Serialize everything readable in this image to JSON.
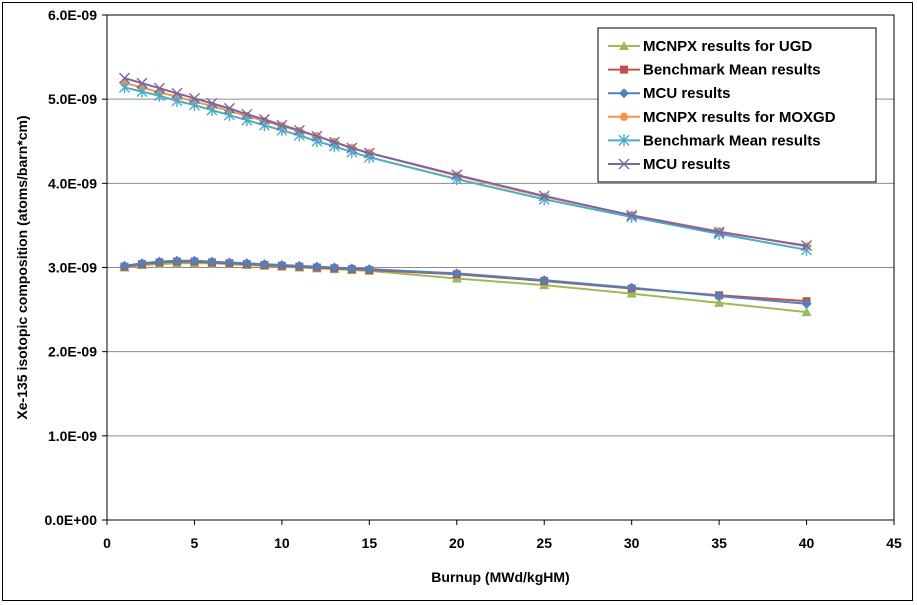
{
  "chart_data": {
    "type": "line",
    "title": "",
    "xlabel": "Burnup (MWd/kgHM)",
    "ylabel": "Xe-135 isotopic composition (atoms/barn*cm)",
    "xlim": [
      0,
      45
    ],
    "ylim": [
      0,
      6e-09
    ],
    "x_ticks": [
      "0",
      "5",
      "10",
      "15",
      "20",
      "25",
      "30",
      "35",
      "40",
      "45"
    ],
    "y_ticks": [
      "0.0E+00",
      "1.0E-09",
      "2.0E-09",
      "3.0E-09",
      "4.0E-09",
      "5.0E-09",
      "6.0E-09"
    ],
    "grid": "horizontal",
    "legend_position": "top-right",
    "x": [
      1,
      2,
      3,
      4,
      5,
      6,
      7,
      8,
      9,
      10,
      11,
      12,
      13,
      14,
      15,
      20,
      25,
      30,
      35,
      40
    ],
    "series": [
      {
        "name": "MCNPX results for UGD",
        "color": "#9BBB59",
        "marker": "triangle",
        "values": [
          3e-09,
          3.03e-09,
          3.04e-09,
          3.05e-09,
          3.05e-09,
          3.05e-09,
          3.04e-09,
          3.03e-09,
          3.02e-09,
          3.01e-09,
          3e-09,
          2.99e-09,
          2.98e-09,
          2.97e-09,
          2.96e-09,
          2.87e-09,
          2.79e-09,
          2.69e-09,
          2.58e-09,
          2.47e-09
        ]
      },
      {
        "name": "Benchmark Mean results",
        "color": "#C0504D",
        "marker": "square",
        "values": [
          3.01e-09,
          3.04e-09,
          3.06e-09,
          3.07e-09,
          3.07e-09,
          3.06e-09,
          3.05e-09,
          3.04e-09,
          3.03e-09,
          3.02e-09,
          3.01e-09,
          3e-09,
          2.99e-09,
          2.98e-09,
          2.97e-09,
          2.92e-09,
          2.84e-09,
          2.75e-09,
          2.67e-09,
          2.6e-09
        ]
      },
      {
        "name": "MCU results",
        "color": "#4F81BD",
        "marker": "diamond",
        "values": [
          3.02e-09,
          3.05e-09,
          3.07e-09,
          3.08e-09,
          3.08e-09,
          3.07e-09,
          3.06e-09,
          3.05e-09,
          3.04e-09,
          3.03e-09,
          3.02e-09,
          3.01e-09,
          3e-09,
          2.99e-09,
          2.98e-09,
          2.93e-09,
          2.85e-09,
          2.76e-09,
          2.66e-09,
          2.57e-09
        ]
      },
      {
        "name": "MCNPX results for MOXGD",
        "color": "#F79646",
        "marker": "circle",
        "values": [
          5.19e-09,
          5.14e-09,
          5.08e-09,
          5.03e-09,
          4.97e-09,
          4.92e-09,
          4.86e-09,
          4.8e-09,
          4.74e-09,
          4.68e-09,
          4.62e-09,
          4.56e-09,
          4.49e-09,
          4.42e-09,
          4.36e-09,
          4.09e-09,
          3.84e-09,
          3.62e-09,
          3.43e-09,
          3.25e-09
        ]
      },
      {
        "name": "Benchmark Mean results",
        "color": "#4BACC6",
        "marker": "star",
        "values": [
          5.14e-09,
          5.09e-09,
          5.04e-09,
          4.98e-09,
          4.93e-09,
          4.87e-09,
          4.81e-09,
          4.75e-09,
          4.69e-09,
          4.63e-09,
          4.57e-09,
          4.5e-09,
          4.44e-09,
          4.37e-09,
          4.31e-09,
          4.05e-09,
          3.81e-09,
          3.6e-09,
          3.4e-09,
          3.21e-09
        ]
      },
      {
        "name": "MCU results",
        "color": "#8064A2",
        "marker": "x",
        "values": [
          5.25e-09,
          5.19e-09,
          5.13e-09,
          5.07e-09,
          5.01e-09,
          4.95e-09,
          4.89e-09,
          4.82e-09,
          4.76e-09,
          4.69e-09,
          4.63e-09,
          4.56e-09,
          4.49e-09,
          4.42e-09,
          4.36e-09,
          4.1e-09,
          3.85e-09,
          3.62e-09,
          3.42e-09,
          3.26e-09
        ]
      }
    ]
  }
}
